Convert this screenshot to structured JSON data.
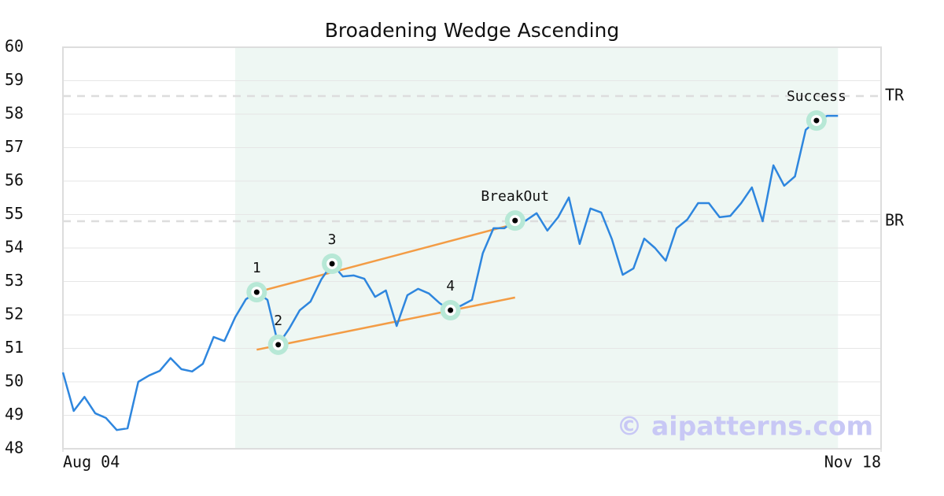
{
  "chart_data": {
    "type": "line",
    "title": "Broadening Wedge Ascending",
    "x": [
      0,
      1,
      2,
      3,
      4,
      5,
      6,
      7,
      8,
      9,
      10,
      11,
      12,
      13,
      14,
      15,
      16,
      17,
      18,
      19,
      20,
      21,
      22,
      23,
      24,
      25,
      26,
      27,
      28,
      29,
      30,
      31,
      32,
      33,
      34,
      35,
      36,
      37,
      38,
      39,
      40,
      41,
      42,
      43,
      44,
      45,
      46,
      47,
      48,
      49,
      50,
      51,
      52,
      53,
      54,
      55,
      56,
      57,
      58,
      59,
      60,
      61,
      62,
      63,
      64,
      65,
      66,
      67,
      68,
      69,
      70,
      71,
      72
    ],
    "series": [
      {
        "color": "#2e86de",
        "values": [
          50.28,
          49.13,
          49.55,
          49.06,
          48.92,
          48.56,
          48.61,
          50.0,
          50.19,
          50.33,
          50.71,
          50.38,
          50.31,
          50.54,
          51.34,
          51.22,
          51.93,
          52.47,
          52.68,
          52.45,
          51.11,
          51.58,
          52.14,
          52.4,
          53.06,
          53.53,
          53.15,
          53.18,
          53.08,
          52.54,
          52.73,
          51.67,
          52.59,
          52.78,
          52.64,
          52.35,
          52.14,
          52.28,
          52.45,
          53.84,
          54.59,
          54.59,
          54.82,
          54.82,
          55.04,
          54.52,
          54.92,
          55.51,
          54.12,
          55.18,
          55.06,
          54.26,
          53.2,
          53.39,
          54.28,
          54.0,
          53.62,
          54.59,
          54.85,
          55.34,
          55.34,
          54.92,
          54.96,
          55.34,
          55.81,
          54.8,
          56.47,
          55.86,
          56.14,
          57.53,
          57.81,
          57.95,
          57.95
        ]
      }
    ],
    "xlim": [
      0,
      76
    ],
    "xticks": [
      {
        "value": 0,
        "label": "Aug 04"
      },
      {
        "value": 76,
        "label": "Nov 18"
      }
    ],
    "ylim": [
      48,
      60
    ],
    "yticks": [
      48,
      49,
      50,
      51,
      52,
      53,
      54,
      55,
      56,
      57,
      58,
      59,
      60
    ],
    "grid": true,
    "shaded_range": {
      "x": [
        16,
        72
      ],
      "color": "#eef7f3"
    },
    "hlines": [
      {
        "label": "TR",
        "value": 58.54
      },
      {
        "label": "BR",
        "value": 54.8
      }
    ],
    "trend_lines": [
      {
        "x": [
          18,
          42
        ],
        "y": [
          52.68,
          54.72
        ],
        "color": "#f39c45"
      },
      {
        "x": [
          18,
          42
        ],
        "y": [
          50.96,
          52.52
        ],
        "color": "#f39c45"
      }
    ],
    "points": [
      {
        "label": "1",
        "x": 18,
        "y": 52.68
      },
      {
        "label": "2",
        "x": 20,
        "y": 51.11
      },
      {
        "label": "3",
        "x": 25,
        "y": 53.53
      },
      {
        "label": "4",
        "x": 36,
        "y": 52.14
      },
      {
        "label": "BreakOut",
        "x": 42,
        "y": 54.82
      },
      {
        "label": "Success",
        "x": 70,
        "y": 57.81
      }
    ],
    "watermark": "© aipatterns.com"
  }
}
